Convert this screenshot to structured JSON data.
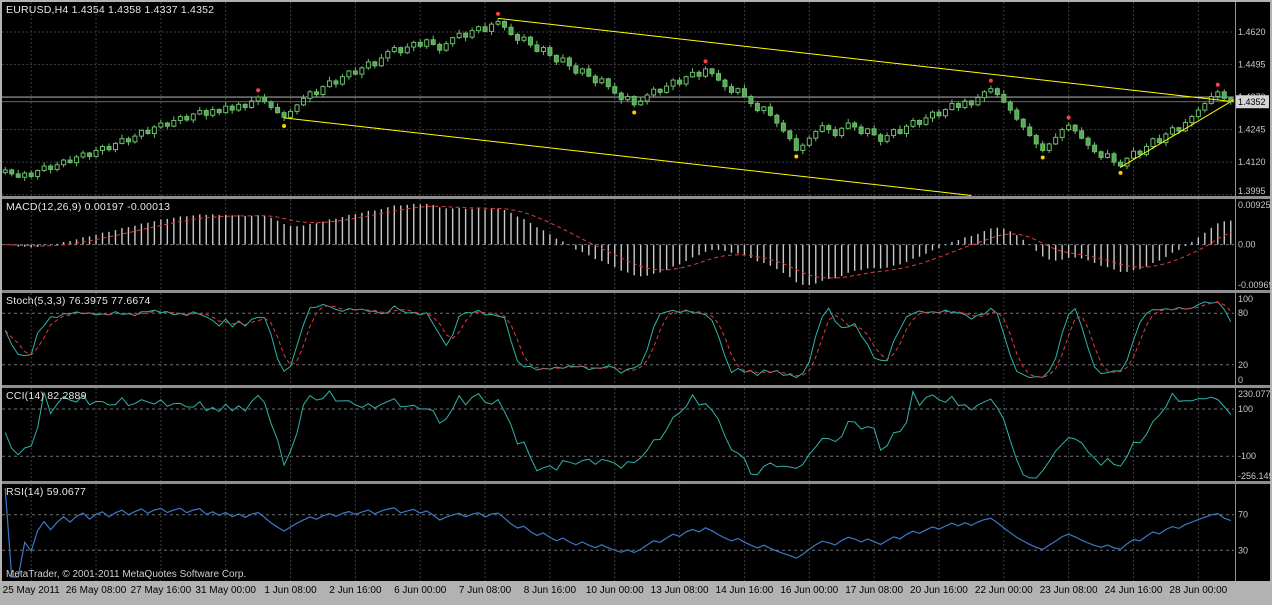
{
  "app": {
    "copyright": "MetaTrader, © 2001-2011 MetaQuotes Software Corp."
  },
  "colors": {
    "background": "#000000",
    "grid": "#3c3c3c",
    "frame": "#b2b2b2",
    "separator": "#8f8f8f",
    "axis_text": "#c8c8c8",
    "label_text": "#e6e6e6",
    "candle_outline": "#6cbf6c",
    "candle_bear_fill": "#57a957",
    "candle_bull_fill": "#000000",
    "trendline": "#ffff00",
    "marker_red": "#ff4040",
    "marker_yellow": "#ffcc00",
    "macd_hist": "#c8c8c8",
    "macd_signal": "#e03c3c",
    "stoch_main": "#2fb3a9",
    "stoch_signal": "#e03c3c",
    "cci_line": "#2fb3a9",
    "rsi_line": "#3c78c8",
    "level_line": "#707070",
    "hline": "#cdcdcd",
    "bid_line": "#8f8f8f",
    "price_box_bg": "#d4d4d4",
    "price_box_text": "#000000"
  },
  "panes": {
    "main": {
      "label": "EURUSD,H4 1.4354 1.4358 1.4337 1.4352"
    },
    "macd": {
      "label": "MACD(12,26,9) 0.00197 -0.00013"
    },
    "stoch": {
      "label": "Stoch(5,3,3) 76.3975 77.6674"
    },
    "cci": {
      "label": "CCI(14) 82.2889"
    },
    "rsi": {
      "label": "RSI(14) 59.0677"
    }
  },
  "time_axis": {
    "first_grid_bar": 4,
    "grid_step": 10,
    "labels": [
      "25 May 2011",
      "26 May 08:00",
      "27 May 16:00",
      "31 May 00:00",
      "1 Jun 08:00",
      "2 Jun 16:00",
      "6 Jun 00:00",
      "7 Jun 08:00",
      "8 Jun 16:00",
      "10 Jun 00:00",
      "13 Jun 08:00",
      "14 Jun 16:00",
      "16 Jun 00:00",
      "17 Jun 08:00",
      "20 Jun 16:00",
      "22 Jun 00:00",
      "23 Jun 08:00",
      "24 Jun 16:00",
      "28 Jun 00:00"
    ]
  },
  "chart_data": [
    {
      "type": "candlestick",
      "symbol": "EURUSD",
      "timeframe": "H4",
      "ohlc_label": {
        "open": "1.4354",
        "high": "1.4358",
        "low": "1.4337",
        "close": "1.4352"
      },
      "y_ticks": [
        1.462,
        1.4495,
        1.437,
        1.4245,
        1.412,
        1.3995
      ],
      "y_range": [
        1.399,
        1.4735
      ],
      "bid": 1.4352,
      "bid_label": "1.4352",
      "horizontal_line": 1.437,
      "wick_pattern": [
        0.0012,
        0.0005,
        0.0016,
        0.0008,
        0.001,
        0.0004,
        0.0014,
        0.0007
      ],
      "closes": [
        1.409,
        1.4075,
        1.4062,
        1.4078,
        1.4065,
        1.4088,
        1.4105,
        1.4092,
        1.411,
        1.4128,
        1.4118,
        1.414,
        1.4155,
        1.4142,
        1.4165,
        1.418,
        1.4168,
        1.4192,
        1.421,
        1.4198,
        1.422,
        1.4242,
        1.423,
        1.4255,
        1.427,
        1.4258,
        1.428,
        1.4295,
        1.4282,
        1.4305,
        1.4318,
        1.43,
        1.4322,
        1.431,
        1.4335,
        1.432,
        1.4342,
        1.433,
        1.4355,
        1.437,
        1.4352,
        1.433,
        1.431,
        1.4292,
        1.4315,
        1.434,
        1.4365,
        1.439,
        1.438,
        1.441,
        1.4432,
        1.442,
        1.4448,
        1.447,
        1.4458,
        1.4482,
        1.4505,
        1.449,
        1.452,
        1.4545,
        1.456,
        1.454,
        1.4562,
        1.458,
        1.4565,
        1.459,
        1.4572,
        1.455,
        1.4575,
        1.4598,
        1.4615,
        1.46,
        1.4625,
        1.464,
        1.4622,
        1.465,
        1.466,
        1.4638,
        1.461,
        1.4588,
        1.46,
        1.457,
        1.4545,
        1.456,
        1.453,
        1.4505,
        1.452,
        1.449,
        1.4462,
        1.4478,
        1.445,
        1.4425,
        1.444,
        1.441,
        1.4385,
        1.436,
        1.4372,
        1.434,
        1.4355,
        1.4378,
        1.44,
        1.4388,
        1.4412,
        1.4435,
        1.442,
        1.4448,
        1.4465,
        1.445,
        1.4478,
        1.446,
        1.4435,
        1.441,
        1.4388,
        1.4402,
        1.4372,
        1.4345,
        1.4318,
        1.4332,
        1.43,
        1.427,
        1.424,
        1.421,
        1.4165,
        1.4185,
        1.4212,
        1.4238,
        1.426,
        1.4245,
        1.4222,
        1.425,
        1.427,
        1.4255,
        1.423,
        1.4248,
        1.4225,
        1.42,
        1.4222,
        1.4245,
        1.423,
        1.4258,
        1.428,
        1.4265,
        1.429,
        1.4312,
        1.4298,
        1.4322,
        1.4345,
        1.433,
        1.4355,
        1.434,
        1.4368,
        1.439,
        1.4402,
        1.438,
        1.435,
        1.432,
        1.4285,
        1.4255,
        1.4222,
        1.419,
        1.4165,
        1.419,
        1.4215,
        1.4245,
        1.4262,
        1.424,
        1.4212,
        1.4185,
        1.416,
        1.4138,
        1.4152,
        1.412,
        1.4105,
        1.4135,
        1.4162,
        1.415,
        1.418,
        1.421,
        1.4195,
        1.4228,
        1.4252,
        1.424,
        1.4272,
        1.4295,
        1.432,
        1.4345,
        1.4372,
        1.439,
        1.4365,
        1.4352
      ],
      "trendlines": [
        {
          "from_bar": 76,
          "from_price": 1.4672,
          "to_bar": 190,
          "to_price": 1.4352
        },
        {
          "from_bar": 43,
          "from_price": 1.429,
          "to_bar": 149,
          "to_price": 1.3992
        },
        {
          "from_bar": 172,
          "from_price": 1.41,
          "to_bar": 190,
          "to_price": 1.436
        }
      ],
      "markers": [
        {
          "bar": 39,
          "side": "above",
          "color": "red"
        },
        {
          "bar": 76,
          "side": "above",
          "color": "red"
        },
        {
          "bar": 108,
          "side": "above",
          "color": "red"
        },
        {
          "bar": 152,
          "side": "above",
          "color": "red"
        },
        {
          "bar": 164,
          "side": "above",
          "color": "red"
        },
        {
          "bar": 187,
          "side": "above",
          "color": "red"
        },
        {
          "bar": 43,
          "side": "below",
          "color": "yellow"
        },
        {
          "bar": 97,
          "side": "below",
          "color": "yellow"
        },
        {
          "bar": 122,
          "side": "below",
          "color": "yellow"
        },
        {
          "bar": 160,
          "side": "below",
          "color": "yellow"
        },
        {
          "bar": 172,
          "side": "below",
          "color": "yellow"
        }
      ]
    },
    {
      "type": "macd",
      "fast": 12,
      "slow": 26,
      "signal": 9,
      "current_macd": 0.00197,
      "current_signal": -0.00013,
      "y_ticks": {
        "top": "0.00925",
        "zero": "0.00",
        "bottom": "-0.00969"
      }
    },
    {
      "type": "stochastic",
      "k_period": 5,
      "d_period": 3,
      "slowing": 3,
      "current_k": 76.3975,
      "current_d": 77.6674,
      "levels": [
        80,
        20
      ],
      "y_range": [
        0,
        100
      ],
      "y_ticks": {
        "top": "100",
        "bottom": "0"
      }
    },
    {
      "type": "cci",
      "period": 14,
      "current": 82.2889,
      "levels": [
        100,
        -100
      ],
      "y_ticks": {
        "top": "230.0777",
        "bottom": "-256.1490"
      }
    },
    {
      "type": "rsi",
      "period": 14,
      "current": 59.0677,
      "levels": [
        70,
        30
      ],
      "y_range": [
        0,
        100
      ]
    }
  ]
}
